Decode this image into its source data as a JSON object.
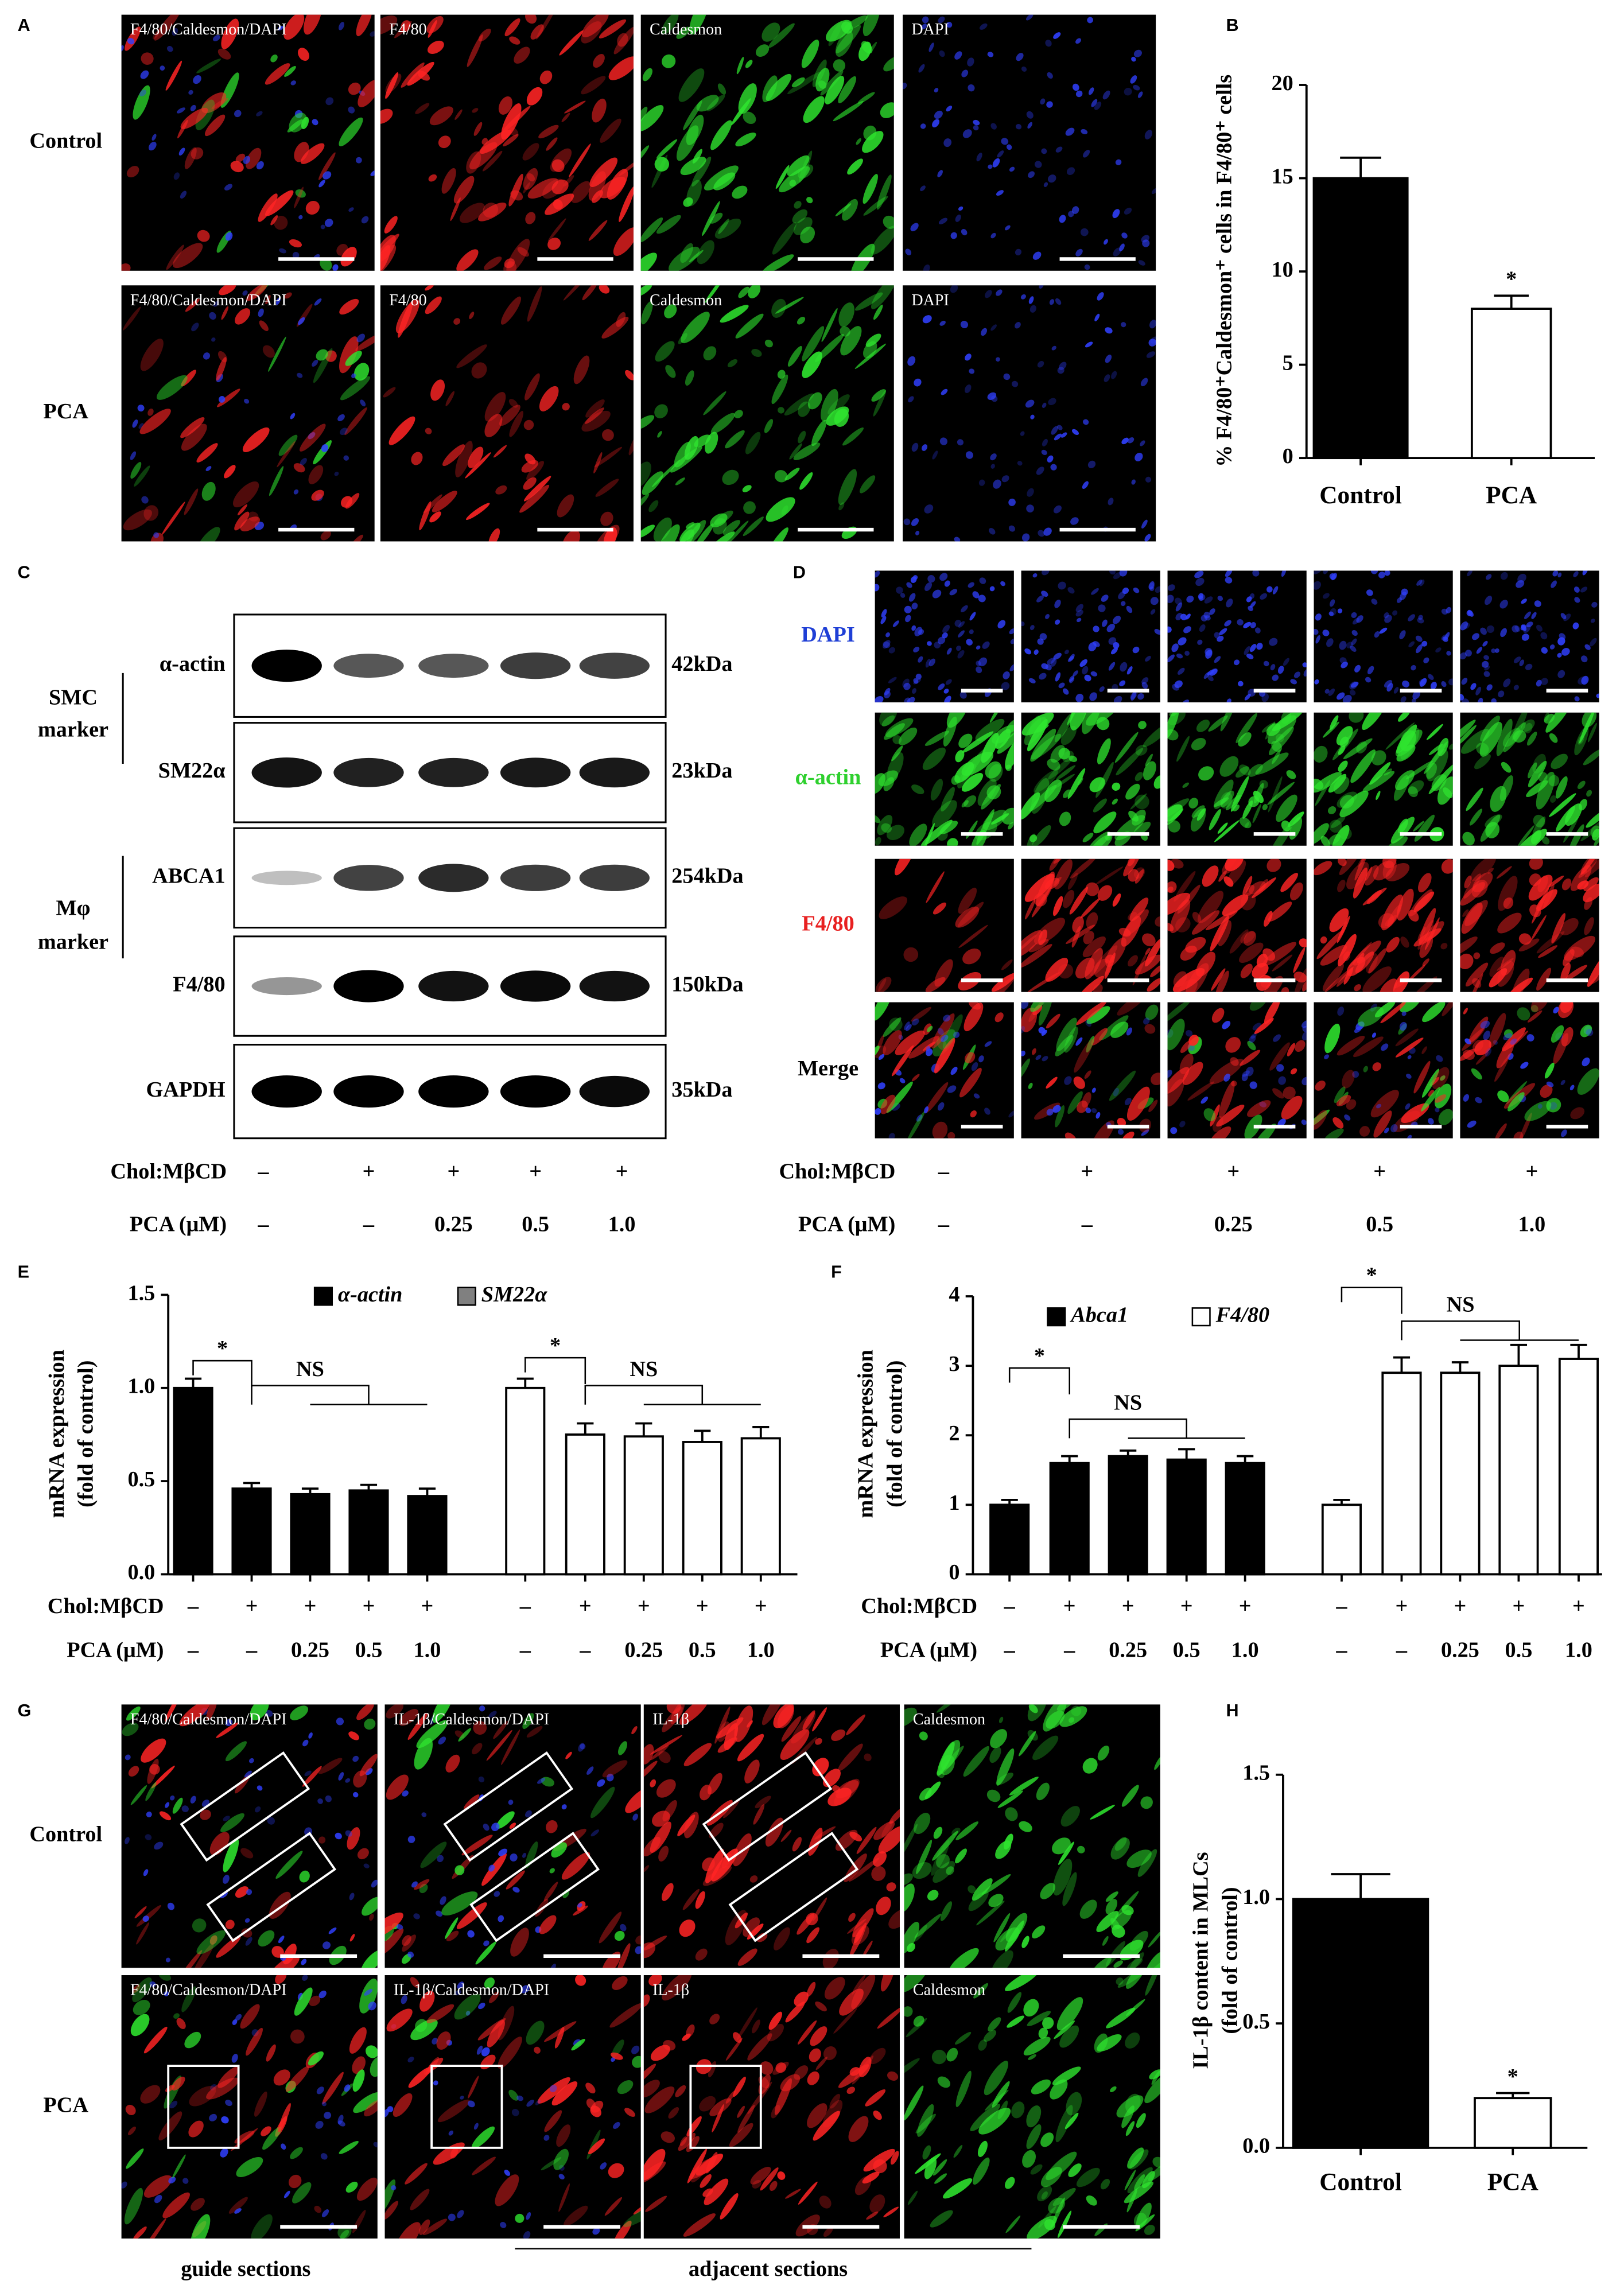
{
  "panel_labels": [
    "A",
    "B",
    "C",
    "D",
    "E",
    "F",
    "G",
    "H"
  ],
  "figure_a": {
    "columns": [
      "F4/80/Caldesmon/DAPI",
      "F4/80",
      "Caldesmon",
      "DAPI"
    ],
    "rows": [
      "Control",
      "PCA"
    ]
  },
  "figure_c": {
    "proteins": [
      {
        "name": "α-actin",
        "size": "42kDa"
      },
      {
        "name": "SM22α",
        "size": "23kDa"
      },
      {
        "name": "ABCA1",
        "size": "254kDa"
      },
      {
        "name": "F4/80",
        "size": "150kDa"
      },
      {
        "name": "GAPDH",
        "size": "35kDa"
      }
    ],
    "groups": [
      [
        "SMC",
        "marker"
      ],
      [
        "Mφ",
        "marker"
      ]
    ],
    "conditions": [
      {
        "label": "Chol:MβCD",
        "values": [
          "–",
          "+",
          "+",
          "+",
          "+"
        ]
      },
      {
        "label": "PCA (μM)",
        "values": [
          "–",
          "–",
          "0.25",
          "0.5",
          "1.0"
        ]
      }
    ]
  },
  "figure_d": {
    "rows": [
      {
        "label": "DAPI",
        "color": "#1f3fd6"
      },
      {
        "label": "α-actin",
        "color": "#2ed02e"
      },
      {
        "label": "F4/80",
        "color": "#e82020"
      },
      {
        "label": "Merge",
        "color": "#000000"
      }
    ],
    "conditions": [
      {
        "label": "Chol:MβCD",
        "values": [
          "–",
          "+",
          "+",
          "+",
          "+"
        ]
      },
      {
        "label": "PCA (μM)",
        "values": [
          "–",
          "–",
          "0.25",
          "0.5",
          "1.0"
        ]
      }
    ]
  },
  "figure_g": {
    "columns": [
      "F4/80/Caldesmon/DAPI",
      "IL-1β/Caldesmon/DAPI",
      "IL-1β",
      "Caldesmon"
    ],
    "rows": [
      "Control",
      "PCA"
    ],
    "footer": [
      "guide sections",
      "adjacent sections"
    ]
  },
  "chart_data": [
    {
      "type": "bar",
      "categories": [
        "Control",
        "PCA"
      ],
      "values": [
        15,
        8
      ],
      "errors": [
        1.1,
        0.7
      ],
      "colors": [
        "#000000",
        "#ffffff"
      ],
      "ylabel": "% F4/80⁺Caldesmon⁺ cells in F4/80⁺ cells",
      "ylim": [
        0,
        20
      ],
      "yticks": [
        0,
        5,
        10,
        15,
        20
      ],
      "annotations": [
        "*"
      ]
    },
    {
      "type": "grouped_bar",
      "series": [
        {
          "name": "α-actin",
          "color": "#000000",
          "values": [
            1.0,
            0.46,
            0.43,
            0.45,
            0.42
          ],
          "errors": [
            0.05,
            0.03,
            0.03,
            0.03,
            0.04
          ]
        },
        {
          "name": "SM22α",
          "color": "#ffffff",
          "legend_color": "#808080",
          "values": [
            1.0,
            0.75,
            0.74,
            0.71,
            0.73
          ],
          "errors": [
            0.05,
            0.06,
            0.07,
            0.06,
            0.06
          ]
        }
      ],
      "conditions": [
        {
          "label": "Chol:MβCD",
          "values": [
            "–",
            "+",
            "+",
            "+",
            "+",
            "–",
            "+",
            "+",
            "+",
            "+"
          ]
        },
        {
          "label": "PCA (μM)",
          "values": [
            "–",
            "–",
            "0.25",
            "0.5",
            "1.0",
            "–",
            "–",
            "0.25",
            "0.5",
            "1.0"
          ]
        }
      ],
      "ylabel": [
        "mRNA expression",
        "(fold of control)"
      ],
      "ylim": [
        0,
        1.5
      ],
      "yticks": [
        {
          "value": 0,
          "label": "0.0"
        },
        0.5,
        {
          "value": 1,
          "label": "1.0"
        },
        1.5
      ],
      "annotations": [
        "*",
        "NS",
        "*",
        "NS"
      ]
    },
    {
      "type": "grouped_bar",
      "series": [
        {
          "name": "Abca1",
          "color": "#000000",
          "values": [
            1.0,
            1.6,
            1.7,
            1.65,
            1.6
          ],
          "errors": [
            0.07,
            0.1,
            0.08,
            0.15,
            0.1
          ]
        },
        {
          "name": "F4/80",
          "color": "#ffffff",
          "values": [
            1.0,
            2.9,
            2.9,
            3.0,
            3.1
          ],
          "errors": [
            0.07,
            0.22,
            0.15,
            0.3,
            0.2
          ]
        }
      ],
      "conditions": [
        {
          "label": "Chol:MβCD",
          "values": [
            "–",
            "+",
            "+",
            "+",
            "+",
            "–",
            "+",
            "+",
            "+",
            "+"
          ]
        },
        {
          "label": "PCA (μM)",
          "values": [
            "–",
            "–",
            "0.25",
            "0.5",
            "1.0",
            "–",
            "–",
            "0.25",
            "0.5",
            "1.0"
          ]
        }
      ],
      "ylabel": [
        "mRNA expression",
        "(fold of control)"
      ],
      "ylim": [
        0,
        4
      ],
      "yticks": [
        0,
        1,
        2,
        3,
        4
      ],
      "annotations": [
        "*",
        "NS",
        "*",
        "NS"
      ]
    },
    {
      "type": "bar",
      "categories": [
        "Control",
        "PCA"
      ],
      "values": [
        1.0,
        0.2
      ],
      "errors": [
        0.1,
        0.02
      ],
      "colors": [
        "#000000",
        "#ffffff"
      ],
      "ylabel": [
        "IL-1β content in MLCs",
        "(fold of control)"
      ],
      "ylim": [
        0,
        1.5
      ],
      "yticks": [
        {
          "value": 0,
          "label": "0.0"
        },
        0.5,
        {
          "value": 1,
          "label": "1.0"
        },
        1.5
      ],
      "annotations": [
        "*"
      ]
    }
  ]
}
